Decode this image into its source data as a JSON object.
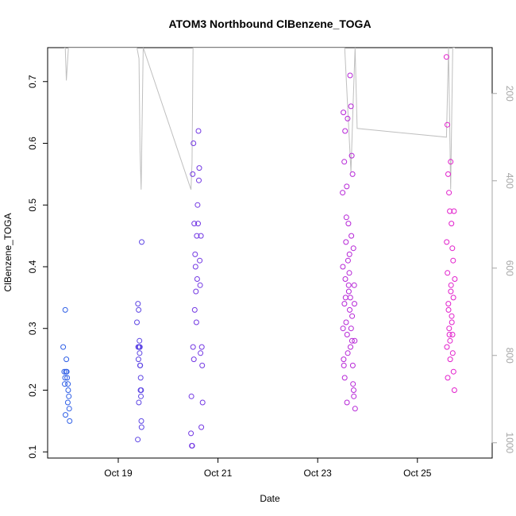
{
  "chart_data": {
    "type": "scatter",
    "title": "ATOM3 Northbound ClBenzene_TOGA",
    "xlabel": "Date",
    "ylabel": "ClBenzene_TOGA",
    "xlim": [
      "Oct 17 14:00",
      "Oct 26 12:00"
    ],
    "ylim": [
      0.09,
      0.755
    ],
    "x_ticks": [
      {
        "label": "Oct 19",
        "value": "Oct 19 00:00"
      },
      {
        "label": "Oct 21",
        "value": "Oct 21 00:00"
      },
      {
        "label": "Oct 23",
        "value": "Oct 23 00:00"
      },
      {
        "label": "Oct 25",
        "value": "Oct 25 00:00"
      }
    ],
    "y_ticks": [
      0.1,
      0.2,
      0.3,
      0.4,
      0.5,
      0.6,
      0.7
    ],
    "y2_label": "",
    "y2_ticks": [
      200,
      400,
      600,
      800,
      1000
    ],
    "y2_range": [
      1035,
      95
    ],
    "grid": false,
    "colors": {
      "early": "#2f5fe6",
      "mid": "#8a2be2",
      "late": "#e21fcc",
      "altitude_line": "#bfbfbf"
    },
    "series": [
      {
        "marker": "open-circle",
        "groups": [
          {
            "date": "Oct 17",
            "x_hours": [
              21.5,
              22.6,
              22.0,
              22.5,
              22.8,
              23.0,
              23.2,
              23.4,
              23.8,
              24.2,
              24.4,
              23.7,
              22.4,
              24.6,
              22.2,
              23.9
            ],
            "values": [
              0.27,
              0.16,
              0.23,
              0.33,
              0.23,
              0.25,
              0.23,
              0.22,
              0.21,
              0.19,
              0.17,
              0.18,
              0.22,
              0.15,
              0.21,
              0.2
            ]
          },
          {
            "date": "Oct 19",
            "x_hours": [
              9.0,
              9.5,
              9.6,
              9.8,
              10.0,
              10.2,
              10.4,
              10.6,
              10.8,
              11.0,
              11.2,
              9.4,
              9.7,
              10.1,
              10.3,
              10.5,
              10.7,
              10.9,
              11.1,
              11.3,
              9.9
            ],
            "values": [
              0.31,
              0.34,
              0.27,
              0.33,
              0.27,
              0.28,
              0.27,
              0.24,
              0.22,
              0.2,
              0.14,
              0.12,
              0.25,
              0.27,
              0.26,
              0.24,
              0.2,
              0.19,
              0.15,
              0.44,
              0.18
            ]
          },
          {
            "date": "Oct 20",
            "x_hours": [
              11.0,
              11.4,
              11.8,
              12.2,
              12.6,
              13.0,
              13.4,
              13.8,
              14.2,
              14.6,
              15.0,
              15.4,
              15.8,
              16.2,
              16.6,
              11.2,
              11.6,
              12.0,
              12.4,
              12.8,
              13.2,
              13.6,
              14.0,
              14.4,
              14.8,
              15.2,
              15.6,
              16.0,
              16.4
            ],
            "values": [
              0.13,
              0.11,
              0.55,
              0.6,
              0.47,
              0.42,
              0.36,
              0.45,
              0.5,
              0.62,
              0.56,
              0.37,
              0.45,
              0.27,
              0.18,
              0.19,
              0.11,
              0.27,
              0.25,
              0.33,
              0.4,
              0.31,
              0.38,
              0.47,
              0.54,
              0.41,
              0.26,
              0.14,
              0.24
            ]
          }
        ]
      },
      {
        "marker": "open-circle",
        "groups": [
          {
            "date": "Oct 23",
            "x_hours": [
              12.0,
              12.4,
              12.8,
              13.2,
              13.6,
              14.0,
              14.4,
              14.8,
              15.2,
              15.6,
              16.0,
              16.4,
              16.8,
              17.2,
              17.6,
              18.0,
              12.2,
              12.6,
              13.0,
              13.4,
              13.8,
              14.2,
              14.6,
              15.0,
              15.4,
              15.8,
              16.2,
              16.6,
              17.0,
              17.4,
              17.8,
              12.1,
              12.5,
              12.9,
              13.3,
              13.7,
              14.1,
              14.5,
              14.9,
              15.3,
              15.7,
              16.1,
              16.5,
              16.9,
              17.3,
              17.7
            ],
            "values": [
              0.52,
              0.65,
              0.57,
              0.62,
              0.44,
              0.53,
              0.64,
              0.47,
              0.39,
              0.71,
              0.66,
              0.58,
              0.55,
              0.43,
              0.37,
              0.17,
              0.3,
              0.24,
              0.22,
              0.35,
              0.48,
              0.29,
              0.41,
              0.36,
              0.33,
              0.27,
              0.45,
              0.32,
              0.21,
              0.19,
              0.28,
              0.4,
              0.25,
              0.34,
              0.38,
              0.31,
              0.18,
              0.26,
              0.37,
              0.42,
              0.35,
              0.3,
              0.28,
              0.24,
              0.2,
              0.34
            ]
          },
          {
            "date": "Oct 25",
            "x_hours": [
              14.0,
              14.4,
              14.8,
              15.2,
              15.6,
              16.0,
              16.4,
              16.8,
              17.2,
              17.6,
              18.0,
              14.2,
              14.6,
              15.0,
              15.4,
              15.8,
              16.2,
              16.6,
              17.0,
              17.4,
              17.8,
              14.1,
              14.5,
              14.9,
              15.3,
              15.7,
              16.1,
              16.5,
              16.9,
              17.3
            ],
            "values": [
              0.74,
              0.63,
              0.55,
              0.52,
              0.49,
              0.57,
              0.47,
              0.43,
              0.41,
              0.49,
              0.38,
              0.27,
              0.22,
              0.33,
              0.29,
              0.25,
              0.37,
              0.31,
              0.26,
              0.23,
              0.2,
              0.44,
              0.39,
              0.34,
              0.3,
              0.28,
              0.36,
              0.32,
              0.29,
              0.35
            ]
          }
        ]
      }
    ],
    "altitude_line": {
      "x": [
        "Oct 17 22:00",
        "Oct 17 22:30",
        "Oct 17 23:00",
        "Oct 18 00:00",
        "Oct 19 09:00",
        "Oct 19 10:00",
        "Oct 19 10:30",
        "Oct 19 11:00",
        "Oct 19 12:00",
        "Oct 20 11:00",
        "Oct 20 11:30",
        "Oct 20 12:00",
        "Oct 20 13:00",
        "Oct 20 15:00",
        "Oct 20 16:00",
        "Oct 23 12:00",
        "Oct 23 13:00",
        "Oct 23 16:00",
        "Oct 23 17:00",
        "Oct 23 18:00",
        "Oct 23 19:00",
        "Oct 25 14:00",
        "Oct 25 15:00",
        "Oct 25 16:00",
        "Oct 25 17:00",
        "Oct 25 18:00"
      ],
      "y": [
        95,
        95,
        170,
        95,
        95,
        120,
        330,
        420,
        95,
        420,
        360,
        95,
        95,
        95,
        95,
        95,
        95,
        380,
        230,
        95,
        280,
        300,
        95,
        420,
        95,
        95
      ]
    }
  }
}
